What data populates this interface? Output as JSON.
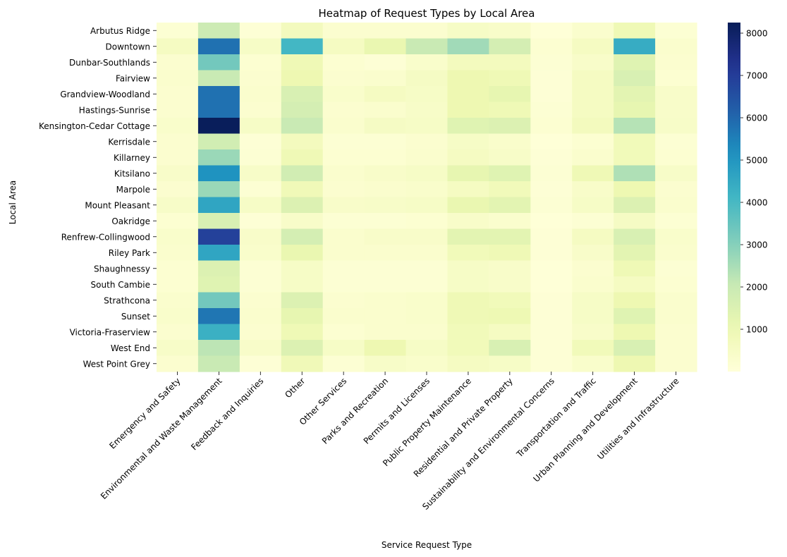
{
  "chart_data": {
    "type": "heatmap",
    "title": "Heatmap of Request Types by Local Area",
    "xlabel": "Service Request Type",
    "ylabel": "Local Area",
    "colormap": "YlGnBu",
    "colorbar_ticks": [
      1000,
      2000,
      3000,
      4000,
      5000,
      6000,
      7000,
      8000
    ],
    "vmin": 0,
    "vmax": 8250,
    "columns": [
      "Emergency and Safety",
      "Environmental and Waste Management",
      "Feedback and Inquiries",
      "Other",
      "Other Services",
      "Parks and Recreation",
      "Permits and Licenses",
      "Public Property Maintenance",
      "Residential and Private Property",
      "Sustainability and Environmental Concerns",
      "Transportation and Traffic",
      "Urban Planning and Development",
      "Utilities and Infrastructure"
    ],
    "rows": [
      "Arbutus Ridge",
      "Downtown",
      "Dunbar-Southlands",
      "Fairview",
      "Grandview-Woodland",
      "Hastings-Sunrise",
      "Kensington-Cedar Cottage",
      "Kerrisdale",
      "Killarney",
      "Kitsilano",
      "Marpole",
      "Mount Pleasant",
      "Oakridge",
      "Renfrew-Collingwood",
      "Riley Park",
      "Shaughnessy",
      "South Cambie",
      "Strathcona",
      "Sunset",
      "Victoria-Fraserview",
      "West End",
      "West Point Grey"
    ],
    "values": [
      [
        150,
        1900,
        100,
        700,
        250,
        250,
        250,
        500,
        400,
        50,
        300,
        900,
        150
      ],
      [
        600,
        5800,
        500,
        4100,
        600,
        1100,
        2000,
        2600,
        1700,
        200,
        600,
        4400,
        300
      ],
      [
        250,
        3300,
        200,
        900,
        200,
        100,
        350,
        700,
        700,
        150,
        400,
        1400,
        250
      ],
      [
        300,
        2000,
        250,
        1000,
        250,
        300,
        550,
        1000,
        900,
        100,
        600,
        1600,
        200
      ],
      [
        250,
        5800,
        300,
        1600,
        350,
        600,
        500,
        1000,
        1200,
        100,
        600,
        1300,
        400
      ],
      [
        250,
        5800,
        250,
        1700,
        250,
        300,
        450,
        1000,
        900,
        150,
        600,
        1200,
        400
      ],
      [
        350,
        8200,
        500,
        2000,
        300,
        550,
        500,
        1400,
        1500,
        200,
        700,
        2300,
        450
      ],
      [
        250,
        1800,
        100,
        700,
        150,
        150,
        250,
        500,
        350,
        50,
        200,
        800,
        150
      ],
      [
        250,
        2700,
        150,
        900,
        200,
        200,
        300,
        600,
        450,
        100,
        300,
        800,
        200
      ],
      [
        400,
        5100,
        450,
        1800,
        300,
        400,
        500,
        1200,
        1400,
        150,
        900,
        2400,
        450
      ],
      [
        250,
        2700,
        150,
        850,
        250,
        300,
        350,
        600,
        800,
        100,
        400,
        1000,
        250
      ],
      [
        450,
        4600,
        500,
        1500,
        400,
        450,
        500,
        1100,
        1300,
        150,
        500,
        1500,
        300
      ],
      [
        200,
        1600,
        100,
        400,
        150,
        150,
        200,
        400,
        300,
        50,
        150,
        550,
        150
      ],
      [
        350,
        6900,
        400,
        1700,
        300,
        400,
        400,
        1300,
        1300,
        100,
        600,
        1600,
        350
      ],
      [
        300,
        4600,
        350,
        1100,
        300,
        300,
        300,
        800,
        900,
        100,
        400,
        1300,
        300
      ],
      [
        200,
        1500,
        150,
        500,
        150,
        150,
        150,
        500,
        400,
        50,
        250,
        900,
        150
      ],
      [
        200,
        1400,
        150,
        500,
        150,
        150,
        150,
        500,
        400,
        50,
        300,
        600,
        200
      ],
      [
        300,
        3300,
        250,
        1500,
        250,
        300,
        350,
        900,
        800,
        100,
        500,
        1000,
        300
      ],
      [
        350,
        5700,
        300,
        1200,
        300,
        300,
        350,
        900,
        950,
        100,
        500,
        1400,
        300
      ],
      [
        250,
        4300,
        250,
        900,
        200,
        300,
        300,
        800,
        600,
        100,
        400,
        1000,
        250
      ],
      [
        450,
        2200,
        400,
        1500,
        500,
        1000,
        500,
        800,
        1600,
        100,
        800,
        1600,
        250
      ],
      [
        250,
        2000,
        100,
        850,
        150,
        450,
        350,
        600,
        500,
        100,
        350,
        1000,
        250
      ]
    ]
  }
}
